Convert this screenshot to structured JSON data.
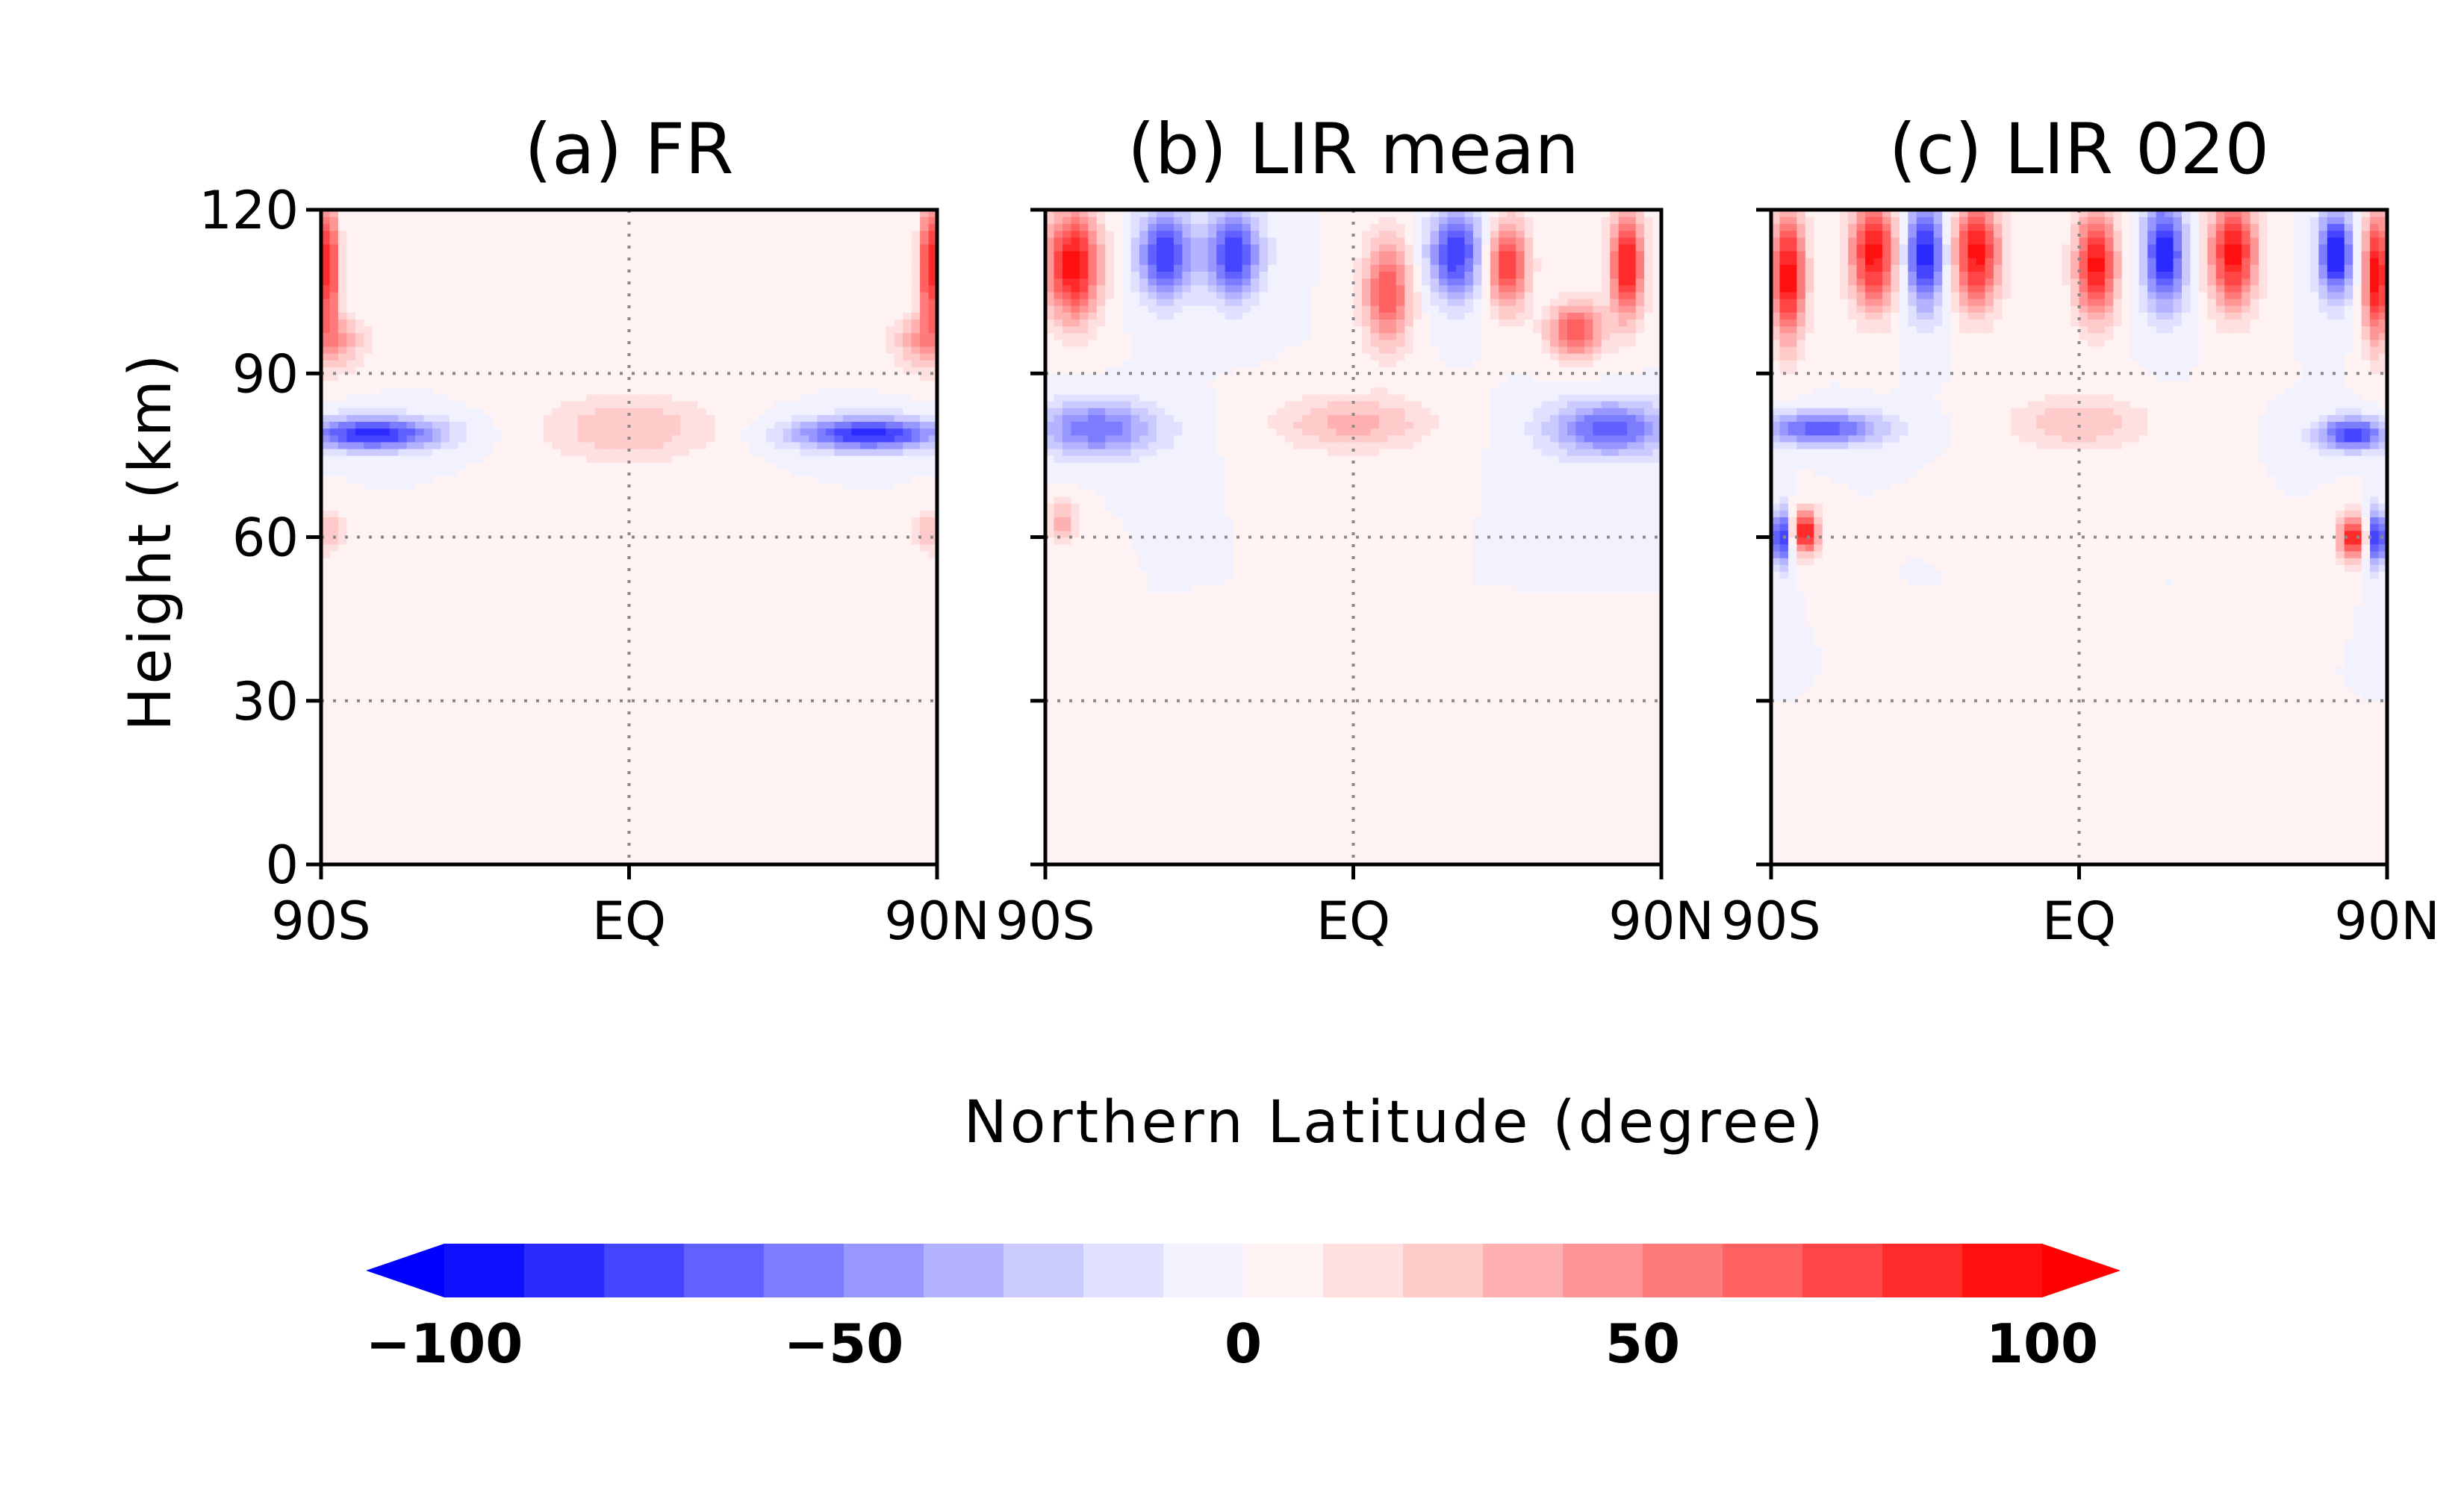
{
  "figure": {
    "xlabel": "Northern Latitude (degree)",
    "ylabel": "Height (km)"
  },
  "chart_data": [
    {
      "type": "heatmap",
      "title": "(a) FR",
      "x_ticks": [
        "90S",
        "EQ",
        "90N"
      ],
      "x_tick_values": [
        -90,
        0,
        90
      ],
      "y_ticks": [
        "0",
        "30",
        "60",
        "90",
        "120"
      ],
      "y_tick_values": [
        0,
        30,
        60,
        90,
        120
      ],
      "xlim": [
        -90,
        90
      ],
      "ylim": [
        0,
        120
      ],
      "grid": "dotted at EQ and 30/60/90 km",
      "features": [
        {
          "lat": 0,
          "height": 80,
          "value": 30,
          "lat_width": 25,
          "height_width": 6
        },
        {
          "lat": -75,
          "height": 79,
          "value": -85,
          "lat_width": 20,
          "height_width": 3
        },
        {
          "lat": 70,
          "height": 79,
          "value": -85,
          "lat_width": 22,
          "height_width": 3
        },
        {
          "lat": -88,
          "height": 110,
          "value": 95,
          "lat_width": 3,
          "height_width": 12
        },
        {
          "lat": 88,
          "height": 110,
          "value": 95,
          "lat_width": 3,
          "height_width": 12
        },
        {
          "lat": -85,
          "height": 96,
          "value": 40,
          "lat_width": 8,
          "height_width": 5
        },
        {
          "lat": 85,
          "height": 96,
          "value": 40,
          "lat_width": 8,
          "height_width": 5
        },
        {
          "lat": -88,
          "height": 61,
          "value": 30,
          "lat_width": 5,
          "height_width": 4
        },
        {
          "lat": 88,
          "height": 61,
          "value": 30,
          "lat_width": 5,
          "height_width": 4
        }
      ]
    },
    {
      "type": "heatmap",
      "title": "(b) LIR mean",
      "x_ticks": [
        "90S",
        "EQ",
        "90N"
      ],
      "x_tick_values": [
        -90,
        0,
        90
      ],
      "y_ticks": [
        "0",
        "30",
        "60",
        "90",
        "120"
      ],
      "y_tick_values": [
        0,
        30,
        60,
        90,
        120
      ],
      "xlim": [
        -90,
        90
      ],
      "ylim": [
        0,
        120
      ],
      "grid": "dotted at EQ and 30/60/90 km",
      "features": [
        {
          "lat": 0,
          "height": 81,
          "value": 35,
          "lat_width": 22,
          "height_width": 5
        },
        {
          "lat": -75,
          "height": 80,
          "value": -60,
          "lat_width": 18,
          "height_width": 5
        },
        {
          "lat": 75,
          "height": 80,
          "value": -65,
          "lat_width": 18,
          "height_width": 5
        },
        {
          "lat": -82,
          "height": 110,
          "value": 100,
          "lat_width": 8,
          "height_width": 10
        },
        {
          "lat": 80,
          "height": 110,
          "value": 95,
          "lat_width": 5,
          "height_width": 10
        },
        {
          "lat": -55,
          "height": 112,
          "value": -80,
          "lat_width": 8,
          "height_width": 8
        },
        {
          "lat": -35,
          "height": 112,
          "value": -80,
          "lat_width": 8,
          "height_width": 8
        },
        {
          "lat": 10,
          "height": 105,
          "value": 70,
          "lat_width": 7,
          "height_width": 10
        },
        {
          "lat": 30,
          "height": 112,
          "value": -80,
          "lat_width": 8,
          "height_width": 8
        },
        {
          "lat": 45,
          "height": 110,
          "value": 85,
          "lat_width": 6,
          "height_width": 8
        },
        {
          "lat": 65,
          "height": 98,
          "value": 70,
          "lat_width": 8,
          "height_width": 5
        },
        {
          "lat": -85,
          "height": 63,
          "value": 35,
          "lat_width": 5,
          "height_width": 4
        }
      ]
    },
    {
      "type": "heatmap",
      "title": "(c) LIR 020",
      "x_ticks": [
        "90S",
        "EQ",
        "90N"
      ],
      "x_tick_values": [
        -90,
        0,
        90
      ],
      "y_ticks": [
        "0",
        "30",
        "60",
        "90",
        "120"
      ],
      "y_tick_values": [
        0,
        30,
        60,
        90,
        120
      ],
      "xlim": [
        -90,
        90
      ],
      "ylim": [
        0,
        120
      ],
      "grid": "dotted at EQ and 30/60/90 km",
      "features": [
        {
          "lat": 0,
          "height": 81,
          "value": 30,
          "lat_width": 20,
          "height_width": 5
        },
        {
          "lat": -75,
          "height": 80,
          "value": -70,
          "lat_width": 18,
          "height_width": 3
        },
        {
          "lat": 80,
          "height": 79,
          "value": -80,
          "lat_width": 10,
          "height_width": 3
        },
        {
          "lat": -85,
          "height": 108,
          "value": 100,
          "lat_width": 5,
          "height_width": 12
        },
        {
          "lat": 87,
          "height": 108,
          "value": 100,
          "lat_width": 4,
          "height_width": 12
        },
        {
          "lat": -60,
          "height": 112,
          "value": 95,
          "lat_width": 7,
          "height_width": 10
        },
        {
          "lat": -30,
          "height": 112,
          "value": 95,
          "lat_width": 7,
          "height_width": 10
        },
        {
          "lat": 5,
          "height": 110,
          "value": 95,
          "lat_width": 6,
          "height_width": 10
        },
        {
          "lat": 45,
          "height": 112,
          "value": 95,
          "lat_width": 7,
          "height_width": 10
        },
        {
          "lat": -45,
          "height": 112,
          "value": -90,
          "lat_width": 6,
          "height_width": 10
        },
        {
          "lat": 25,
          "height": 112,
          "value": -90,
          "lat_width": 6,
          "height_width": 10
        },
        {
          "lat": 75,
          "height": 112,
          "value": -95,
          "lat_width": 5,
          "height_width": 8
        },
        {
          "lat": -80,
          "height": 61,
          "value": 95,
          "lat_width": 4,
          "height_width": 4
        },
        {
          "lat": -87,
          "height": 60,
          "value": -90,
          "lat_width": 3,
          "height_width": 5
        },
        {
          "lat": 80,
          "height": 60,
          "value": 95,
          "lat_width": 4,
          "height_width": 4
        },
        {
          "lat": 87,
          "height": 60,
          "value": -90,
          "lat_width": 3,
          "height_width": 5
        }
      ]
    }
  ],
  "colorbar": {
    "ticks": [
      "−100",
      "−50",
      "0",
      "50",
      "100"
    ],
    "tick_values": [
      -100,
      -50,
      0,
      50,
      100
    ],
    "range": [
      -100,
      100
    ],
    "step": 10,
    "extend": "both",
    "colors": [
      "#1010ff",
      "#2a2aff",
      "#4545ff",
      "#6161ff",
      "#7c7cff",
      "#9797ff",
      "#b3b3ff",
      "#cacaff",
      "#e0e0ff",
      "#f2f2ff",
      "#fff2f2",
      "#ffe0e0",
      "#ffcaca",
      "#ffb0b0",
      "#ff9696",
      "#ff7a7a",
      "#ff6060",
      "#ff4545",
      "#ff2b2b",
      "#ff1010"
    ],
    "under_color": "#0000ff",
    "over_color": "#ff0000"
  }
}
